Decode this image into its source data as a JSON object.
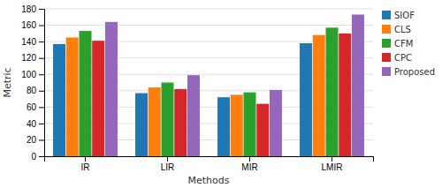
{
  "chart_data": {
    "type": "bar",
    "xlabel": "Methods",
    "ylabel": "Metric",
    "categories": [
      "IR",
      "LIR",
      "MIR",
      "LMIR"
    ],
    "series": [
      {
        "name": "SIOF",
        "values": [
          137,
          77,
          72,
          138
        ]
      },
      {
        "name": "CLS",
        "values": [
          145,
          84,
          75,
          148
        ]
      },
      {
        "name": "CFM",
        "values": [
          153,
          90,
          78,
          157
        ]
      },
      {
        "name": "CPC",
        "values": [
          141,
          82,
          64,
          150
        ]
      },
      {
        "name": "Proposed",
        "values": [
          164,
          99,
          81,
          173
        ]
      }
    ],
    "ylim": [
      0,
      180
    ],
    "yticks": [
      0,
      20,
      40,
      60,
      80,
      100,
      120,
      140,
      160,
      180
    ],
    "grid": true,
    "legend": "right"
  }
}
